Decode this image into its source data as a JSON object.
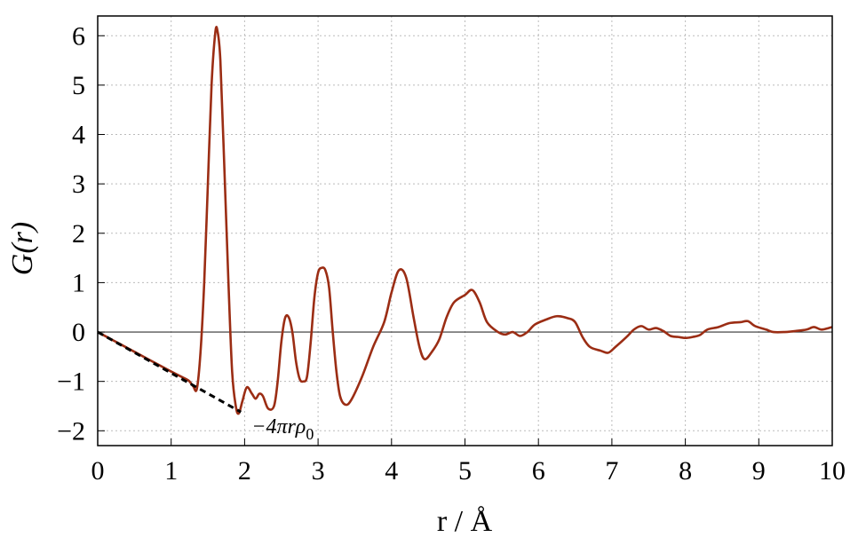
{
  "chart_data": {
    "type": "line",
    "y_label": "G(r)",
    "x_label": "r / Å",
    "xlim": [
      0,
      10
    ],
    "ylim": [
      -2.3,
      6.4
    ],
    "xticks": [
      0,
      1,
      2,
      3,
      4,
      5,
      6,
      7,
      8,
      9,
      10
    ],
    "yticks": [
      {
        "value": -2,
        "label": "−2"
      },
      {
        "value": -1,
        "label": "−1"
      },
      0,
      1,
      2,
      3,
      4,
      5,
      6
    ],
    "grid": true,
    "hline": 0,
    "annotation": {
      "text": "−4πrρ",
      "sub": "0",
      "x": 1.95,
      "y": -1.62
    },
    "series": [
      {
        "color": "#9b2d14",
        "style": "solid",
        "x": [
          0,
          0.5,
          1.0,
          1.2,
          1.25,
          1.3,
          1.35,
          1.4,
          1.45,
          1.5,
          1.55,
          1.6,
          1.63,
          1.67,
          1.72,
          1.78,
          1.83,
          1.88,
          1.92,
          1.97,
          2.03,
          2.1,
          2.15,
          2.2,
          2.25,
          2.32,
          2.4,
          2.45,
          2.5,
          2.55,
          2.6,
          2.65,
          2.7,
          2.75,
          2.8,
          2.85,
          2.9,
          2.95,
          3.0,
          3.05,
          3.1,
          3.15,
          3.2,
          3.25,
          3.3,
          3.37,
          3.45,
          3.6,
          3.75,
          3.9,
          4.0,
          4.1,
          4.2,
          4.3,
          4.38,
          4.45,
          4.55,
          4.65,
          4.75,
          4.85,
          5.0,
          5.1,
          5.2,
          5.3,
          5.45,
          5.55,
          5.65,
          5.75,
          5.85,
          5.95,
          6.1,
          6.25,
          6.4,
          6.5,
          6.6,
          6.7,
          6.85,
          6.95,
          7.05,
          7.2,
          7.3,
          7.4,
          7.5,
          7.6,
          7.7,
          7.8,
          7.9,
          8.0,
          8.1,
          8.2,
          8.3,
          8.45,
          8.6,
          8.75,
          8.85,
          8.95,
          9.1,
          9.2,
          9.35,
          9.5,
          9.65,
          9.75,
          9.85,
          9.95,
          10.0
        ],
        "values": [
          0,
          -0.4,
          -0.8,
          -0.95,
          -1.0,
          -1.1,
          -1.15,
          -0.4,
          1.0,
          3.0,
          5.0,
          6.05,
          6.1,
          5.5,
          3.5,
          1.0,
          -0.8,
          -1.5,
          -1.65,
          -1.4,
          -1.12,
          -1.25,
          -1.35,
          -1.25,
          -1.3,
          -1.55,
          -1.5,
          -1.0,
          -0.2,
          0.28,
          0.3,
          0.0,
          -0.6,
          -0.95,
          -1.0,
          -0.9,
          -0.2,
          0.7,
          1.2,
          1.3,
          1.25,
          0.9,
          0.0,
          -0.8,
          -1.3,
          -1.47,
          -1.38,
          -0.9,
          -0.3,
          0.2,
          0.8,
          1.25,
          1.1,
          0.3,
          -0.3,
          -0.55,
          -0.4,
          -0.15,
          0.3,
          0.6,
          0.75,
          0.85,
          0.6,
          0.2,
          0.0,
          -0.05,
          0.0,
          -0.08,
          0.0,
          0.15,
          0.25,
          0.32,
          0.28,
          0.2,
          -0.1,
          -0.3,
          -0.38,
          -0.42,
          -0.3,
          -0.1,
          0.05,
          0.12,
          0.05,
          0.08,
          0.02,
          -0.08,
          -0.1,
          -0.12,
          -0.1,
          -0.06,
          0.05,
          0.1,
          0.18,
          0.2,
          0.22,
          0.12,
          0.05,
          0.0,
          0.0,
          0.02,
          0.05,
          0.1,
          0.05,
          0.08,
          0.1
        ]
      },
      {
        "color": "#000000",
        "style": "dashed",
        "x": [
          0,
          1.95
        ],
        "values": [
          0,
          -1.62
        ]
      }
    ]
  }
}
